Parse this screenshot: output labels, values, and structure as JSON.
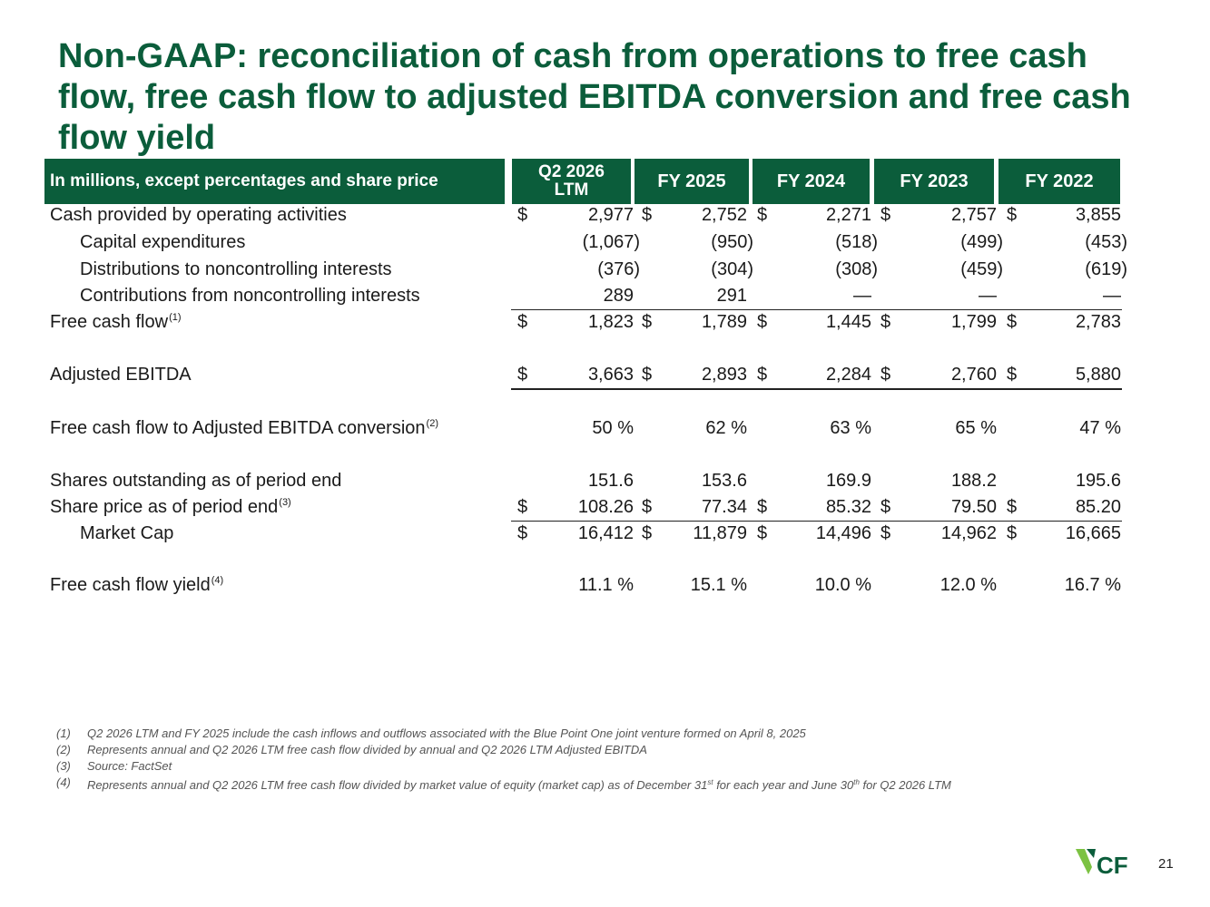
{
  "title": "Non-GAAP: reconciliation of cash from operations to free cash flow, free cash flow to adjusted EBITDA conversion and free cash flow yield",
  "header": {
    "label": "In millions, except percentages and share price",
    "col0_line1": "Q2 2026",
    "col0_line2": "LTM",
    "col1": "FY 2025",
    "col2": "FY 2024",
    "col3": "FY 2023",
    "col4": "FY 2022"
  },
  "rows": [
    {
      "label": "Cash provided by operating activities",
      "sup": "",
      "dollar": "$",
      "values": [
        "2,977",
        "2,752",
        "2,271",
        "2,757",
        "3,855"
      ]
    },
    {
      "label": "Capital expenditures",
      "sup": "",
      "dollar": "",
      "values": [
        "(1,067)",
        "(950)",
        "(518)",
        "(499)",
        "(453)"
      ]
    },
    {
      "label": "Distributions to noncontrolling interests",
      "sup": "",
      "dollar": "",
      "values": [
        "(376)",
        "(304)",
        "(308)",
        "(459)",
        "(619)"
      ]
    },
    {
      "label": "Contributions from noncontrolling interests",
      "sup": "",
      "dollar": "",
      "values": [
        "289",
        "291",
        "—",
        "—",
        "—"
      ]
    },
    {
      "label": "Free cash flow",
      "sup": "(1)",
      "dollar": "$",
      "values": [
        "1,823",
        "1,789",
        "1,445",
        "1,799",
        "2,783"
      ]
    },
    {
      "label": "Adjusted EBITDA",
      "sup": "",
      "dollar": "$",
      "values": [
        "3,663",
        "2,893",
        "2,284",
        "2,760",
        "5,880"
      ]
    },
    {
      "label": "Free cash flow to Adjusted EBITDA conversion",
      "sup": "(2)",
      "dollar": "",
      "values": [
        "50 %",
        "62 %",
        "63 %",
        "65 %",
        "47 %"
      ]
    },
    {
      "label": "Shares outstanding as of period end",
      "sup": "",
      "dollar": "",
      "values": [
        "151.6",
        "153.6",
        "169.9",
        "188.2",
        "195.6"
      ]
    },
    {
      "label": "Share price as of period end",
      "sup": "(3)",
      "dollar": "$",
      "values": [
        "108.26",
        "77.34",
        "85.32",
        "79.50",
        "85.20"
      ]
    },
    {
      "label": "Market Cap",
      "sup": "",
      "dollar": "$",
      "values": [
        "16,412",
        "11,879",
        "14,496",
        "14,962",
        "16,665"
      ]
    },
    {
      "label": "Free cash flow yield",
      "sup": "(4)",
      "dollar": "",
      "values": [
        "11.1 %",
        "15.1 %",
        "10.0 %",
        "12.0 %",
        "16.7 %"
      ]
    }
  ],
  "footnotes": [
    {
      "num": "(1)",
      "text": "Q2 2026 LTM and FY 2025 include the cash inflows and outflows associated with the Blue Point One joint venture formed on April 8, 2025"
    },
    {
      "num": "(2)",
      "text": "Represents annual and Q2 2026 LTM free cash flow divided by annual and Q2 2026 LTM Adjusted EBITDA"
    },
    {
      "num": "(3)",
      "text": "Source: FactSet"
    },
    {
      "num": "(4)",
      "text_a": "Represents annual and Q2 2026 LTM free cash flow divided by market value of equity (market cap) as of December 31",
      "sup_a": "st",
      "text_b": " for each year and June 30",
      "sup_b": "th",
      "text_c": " for Q2 2026 LTM"
    }
  ],
  "logo": {
    "text": "CF",
    "colors": {
      "green": "#0b5d3b",
      "light_green": "#7cc242"
    }
  },
  "page_number": "21"
}
